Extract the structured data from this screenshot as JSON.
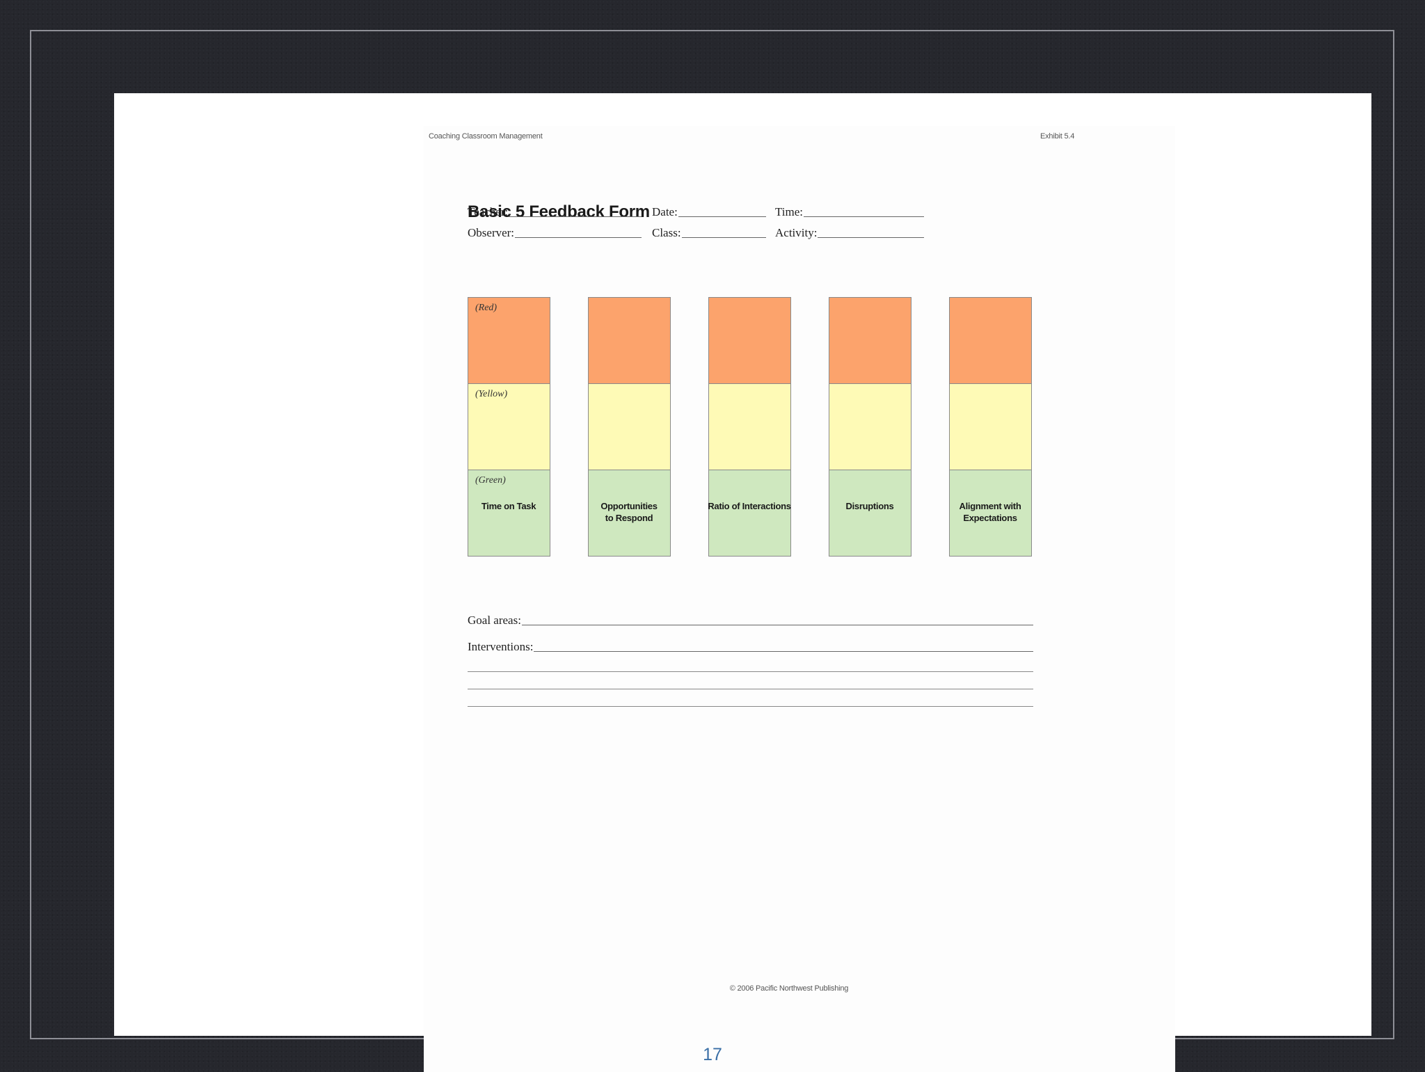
{
  "document": {
    "header_left": "Coaching Classroom Management",
    "header_right": "Exhibit 5.4",
    "title": "Basic 5 Feedback Form",
    "fields": {
      "teacher": "Teacher:",
      "date": "Date:",
      "time": "Time:",
      "observer": "Observer:",
      "class": "Class:",
      "activity": "Activity:"
    },
    "zone_labels": {
      "red": "(Red)",
      "yellow": "(Yellow)",
      "green": "(Green)"
    },
    "zone_colors": {
      "red": "#fca36c",
      "yellow": "#fefab6",
      "green": "#cfe8bf"
    },
    "bars": [
      {
        "label": "Time on Task"
      },
      {
        "label": "Opportunities\nto Respond"
      },
      {
        "label": "Ratio of Interactions"
      },
      {
        "label": "Disruptions"
      },
      {
        "label": "Alignment with\nExpectations"
      }
    ],
    "goal_areas": "Goal areas:",
    "interventions": "Interventions:",
    "footer": "© 2006 Pacific Northwest Publishing"
  },
  "slide": {
    "page_number": "17"
  }
}
